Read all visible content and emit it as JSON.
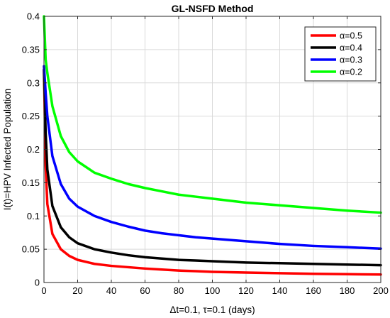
{
  "chart_data": {
    "type": "line",
    "title": "GL-NSFD Method",
    "xlabel": "Δt=0.1, τ=0.1 (days)",
    "ylabel": "I(t)=HPV Infected Population",
    "xlim": [
      0,
      200
    ],
    "ylim": [
      0,
      0.4
    ],
    "x_ticks": [
      "0",
      "20",
      "40",
      "60",
      "80",
      "100",
      "120",
      "140",
      "160",
      "180",
      "200"
    ],
    "y_ticks": [
      "0",
      "0.05",
      "0.1",
      "0.15",
      "0.2",
      "0.25",
      "0.3",
      "0.35",
      "0.4"
    ],
    "grid": true,
    "legend_position": "top-right",
    "x": [
      0,
      1,
      2,
      5,
      10,
      15,
      20,
      30,
      40,
      50,
      60,
      70,
      80,
      90,
      100,
      120,
      140,
      160,
      180,
      200
    ],
    "series": [
      {
        "name": "α=0.5",
        "color": "#ff0000",
        "values": [
          0.32,
          0.175,
          0.118,
          0.073,
          0.05,
          0.04,
          0.034,
          0.028,
          0.025,
          0.023,
          0.021,
          0.0195,
          0.018,
          0.017,
          0.016,
          0.015,
          0.014,
          0.013,
          0.0125,
          0.012
        ]
      },
      {
        "name": "α=0.4",
        "color": "#000000",
        "values": [
          0.32,
          0.225,
          0.17,
          0.115,
          0.083,
          0.068,
          0.059,
          0.05,
          0.045,
          0.041,
          0.038,
          0.036,
          0.034,
          0.033,
          0.032,
          0.03,
          0.029,
          0.028,
          0.027,
          0.026
        ]
      },
      {
        "name": "α=0.3",
        "color": "#0000ff",
        "values": [
          0.325,
          0.285,
          0.25,
          0.19,
          0.148,
          0.126,
          0.114,
          0.1,
          0.091,
          0.084,
          0.078,
          0.074,
          0.071,
          0.068,
          0.066,
          0.062,
          0.058,
          0.055,
          0.053,
          0.051
        ]
      },
      {
        "name": "α=0.2",
        "color": "#00ff00",
        "values": [
          0.4,
          0.335,
          0.315,
          0.265,
          0.22,
          0.196,
          0.182,
          0.165,
          0.156,
          0.148,
          0.142,
          0.137,
          0.132,
          0.129,
          0.126,
          0.12,
          0.116,
          0.112,
          0.108,
          0.105
        ]
      }
    ]
  }
}
